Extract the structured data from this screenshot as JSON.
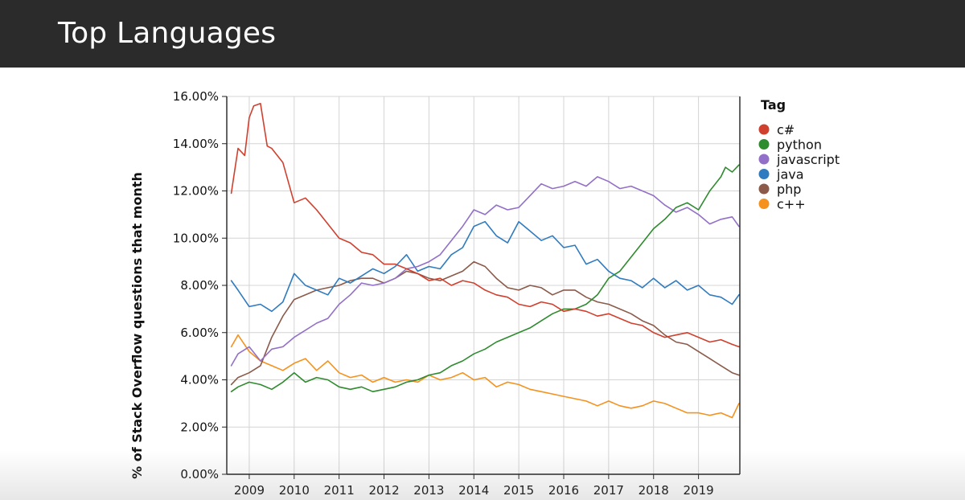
{
  "slide": {
    "title": "Top Languages"
  },
  "chart_data": {
    "type": "line",
    "title": "",
    "xlabel": "",
    "ylabel": "% of Stack Overflow questions that month",
    "x_ticks": [
      "2009",
      "2010",
      "2011",
      "2012",
      "2013",
      "2014",
      "2015",
      "2016",
      "2017",
      "2018",
      "2019"
    ],
    "y_ticks": [
      "0.00%",
      "2.00%",
      "4.00%",
      "6.00%",
      "8.00%",
      "10.00%",
      "12.00%",
      "14.00%",
      "16.00%"
    ],
    "xlim": [
      2008.5,
      2019.92
    ],
    "ylim": [
      0,
      16
    ],
    "grid": true,
    "legend": {
      "title": "Tag",
      "position": "right"
    },
    "series": [
      {
        "name": "c#",
        "color": "#d0402e",
        "x": [
          2008.6,
          2008.75,
          2008.9,
          2009.0,
          2009.1,
          2009.25,
          2009.4,
          2009.5,
          2009.75,
          2010.0,
          2010.25,
          2010.5,
          2010.75,
          2011.0,
          2011.25,
          2011.5,
          2011.75,
          2012.0,
          2012.25,
          2012.5,
          2012.75,
          2013.0,
          2013.25,
          2013.5,
          2013.75,
          2014.0,
          2014.25,
          2014.5,
          2014.75,
          2015.0,
          2015.25,
          2015.5,
          2015.75,
          2016.0,
          2016.25,
          2016.5,
          2016.75,
          2017.0,
          2017.25,
          2017.5,
          2017.75,
          2018.0,
          2018.25,
          2018.5,
          2018.75,
          2019.0,
          2019.25,
          2019.5,
          2019.75,
          2019.9
        ],
        "values": [
          11.9,
          13.8,
          13.5,
          15.1,
          15.6,
          15.7,
          13.9,
          13.8,
          13.2,
          11.5,
          11.7,
          11.2,
          10.6,
          10.0,
          9.8,
          9.4,
          9.3,
          8.9,
          8.9,
          8.7,
          8.5,
          8.2,
          8.3,
          8.0,
          8.2,
          8.1,
          7.8,
          7.6,
          7.5,
          7.2,
          7.1,
          7.3,
          7.2,
          6.9,
          7.0,
          6.9,
          6.7,
          6.8,
          6.6,
          6.4,
          6.3,
          6.0,
          5.8,
          5.9,
          6.0,
          5.8,
          5.6,
          5.7,
          5.5,
          5.4
        ]
      },
      {
        "name": "python",
        "color": "#2e8b2e",
        "x": [
          2008.6,
          2008.75,
          2009.0,
          2009.25,
          2009.5,
          2009.75,
          2010.0,
          2010.25,
          2010.5,
          2010.75,
          2011.0,
          2011.25,
          2011.5,
          2011.75,
          2012.0,
          2012.25,
          2012.5,
          2012.75,
          2013.0,
          2013.25,
          2013.5,
          2013.75,
          2014.0,
          2014.25,
          2014.5,
          2014.75,
          2015.0,
          2015.25,
          2015.5,
          2015.75,
          2016.0,
          2016.25,
          2016.5,
          2016.75,
          2017.0,
          2017.25,
          2017.5,
          2017.75,
          2018.0,
          2018.25,
          2018.5,
          2018.75,
          2019.0,
          2019.25,
          2019.5,
          2019.6,
          2019.75,
          2019.9
        ],
        "values": [
          3.5,
          3.7,
          3.9,
          3.8,
          3.6,
          3.9,
          4.3,
          3.9,
          4.1,
          4.0,
          3.7,
          3.6,
          3.7,
          3.5,
          3.6,
          3.7,
          3.9,
          4.0,
          4.2,
          4.3,
          4.6,
          4.8,
          5.1,
          5.3,
          5.6,
          5.8,
          6.0,
          6.2,
          6.5,
          6.8,
          7.0,
          7.0,
          7.2,
          7.6,
          8.3,
          8.6,
          9.2,
          9.8,
          10.4,
          10.8,
          11.3,
          11.5,
          11.2,
          12.0,
          12.6,
          13.0,
          12.8,
          13.1
        ]
      },
      {
        "name": "javascript",
        "color": "#9370c8",
        "x": [
          2008.6,
          2008.75,
          2009.0,
          2009.25,
          2009.5,
          2009.75,
          2010.0,
          2010.25,
          2010.5,
          2010.75,
          2011.0,
          2011.25,
          2011.5,
          2011.75,
          2012.0,
          2012.25,
          2012.5,
          2012.75,
          2013.0,
          2013.25,
          2013.5,
          2013.75,
          2014.0,
          2014.25,
          2014.5,
          2014.75,
          2015.0,
          2015.25,
          2015.5,
          2015.75,
          2016.0,
          2016.25,
          2016.5,
          2016.75,
          2017.0,
          2017.25,
          2017.5,
          2017.75,
          2018.0,
          2018.25,
          2018.5,
          2018.75,
          2019.0,
          2019.25,
          2019.5,
          2019.75,
          2019.9
        ],
        "values": [
          4.6,
          5.1,
          5.4,
          4.8,
          5.3,
          5.4,
          5.8,
          6.1,
          6.4,
          6.6,
          7.2,
          7.6,
          8.1,
          8.0,
          8.1,
          8.3,
          8.7,
          8.8,
          9.0,
          9.3,
          9.9,
          10.5,
          11.2,
          11.0,
          11.4,
          11.2,
          11.3,
          11.8,
          12.3,
          12.1,
          12.2,
          12.4,
          12.2,
          12.6,
          12.4,
          12.1,
          12.2,
          12.0,
          11.8,
          11.4,
          11.1,
          11.3,
          11.0,
          10.6,
          10.8,
          10.9,
          10.5
        ]
      },
      {
        "name": "java",
        "color": "#2f7bbf",
        "x": [
          2008.6,
          2008.75,
          2009.0,
          2009.25,
          2009.5,
          2009.75,
          2010.0,
          2010.25,
          2010.5,
          2010.75,
          2011.0,
          2011.25,
          2011.5,
          2011.75,
          2012.0,
          2012.25,
          2012.5,
          2012.75,
          2013.0,
          2013.25,
          2013.5,
          2013.75,
          2014.0,
          2014.25,
          2014.5,
          2014.75,
          2015.0,
          2015.25,
          2015.5,
          2015.75,
          2016.0,
          2016.25,
          2016.5,
          2016.75,
          2017.0,
          2017.25,
          2017.5,
          2017.75,
          2018.0,
          2018.25,
          2018.5,
          2018.75,
          2019.0,
          2019.25,
          2019.5,
          2019.75,
          2019.9
        ],
        "values": [
          8.2,
          7.8,
          7.1,
          7.2,
          6.9,
          7.3,
          8.5,
          8.0,
          7.8,
          7.6,
          8.3,
          8.1,
          8.4,
          8.7,
          8.5,
          8.8,
          9.3,
          8.6,
          8.8,
          8.7,
          9.3,
          9.6,
          10.5,
          10.7,
          10.1,
          9.8,
          10.7,
          10.3,
          9.9,
          10.1,
          9.6,
          9.7,
          8.9,
          9.1,
          8.6,
          8.3,
          8.2,
          7.9,
          8.3,
          7.9,
          8.2,
          7.8,
          8.0,
          7.6,
          7.5,
          7.2,
          7.6
        ]
      },
      {
        "name": "php",
        "color": "#8b5a4a",
        "x": [
          2008.6,
          2008.75,
          2009.0,
          2009.25,
          2009.5,
          2009.75,
          2010.0,
          2010.25,
          2010.5,
          2010.75,
          2011.0,
          2011.25,
          2011.5,
          2011.75,
          2012.0,
          2012.25,
          2012.5,
          2012.75,
          2013.0,
          2013.25,
          2013.5,
          2013.75,
          2014.0,
          2014.25,
          2014.5,
          2014.75,
          2015.0,
          2015.25,
          2015.5,
          2015.75,
          2016.0,
          2016.25,
          2016.5,
          2016.75,
          2017.0,
          2017.25,
          2017.5,
          2017.75,
          2018.0,
          2018.25,
          2018.5,
          2018.75,
          2019.0,
          2019.25,
          2019.5,
          2019.75,
          2019.9
        ],
        "values": [
          3.8,
          4.1,
          4.3,
          4.6,
          5.8,
          6.7,
          7.4,
          7.6,
          7.8,
          7.9,
          8.0,
          8.2,
          8.3,
          8.3,
          8.1,
          8.3,
          8.6,
          8.5,
          8.3,
          8.2,
          8.4,
          8.6,
          9.0,
          8.8,
          8.3,
          7.9,
          7.8,
          8.0,
          7.9,
          7.6,
          7.8,
          7.8,
          7.5,
          7.3,
          7.2,
          7.0,
          6.8,
          6.5,
          6.3,
          5.9,
          5.6,
          5.5,
          5.2,
          4.9,
          4.6,
          4.3,
          4.2
        ]
      },
      {
        "name": "c++",
        "color": "#f5921e",
        "x": [
          2008.6,
          2008.75,
          2009.0,
          2009.25,
          2009.5,
          2009.75,
          2010.0,
          2010.25,
          2010.5,
          2010.75,
          2011.0,
          2011.25,
          2011.5,
          2011.75,
          2012.0,
          2012.25,
          2012.5,
          2012.75,
          2013.0,
          2013.25,
          2013.5,
          2013.75,
          2014.0,
          2014.25,
          2014.5,
          2014.75,
          2015.0,
          2015.25,
          2015.5,
          2015.75,
          2016.0,
          2016.25,
          2016.5,
          2016.75,
          2017.0,
          2017.25,
          2017.5,
          2017.75,
          2018.0,
          2018.25,
          2018.5,
          2018.75,
          2019.0,
          2019.25,
          2019.5,
          2019.75,
          2019.9
        ],
        "values": [
          5.4,
          5.9,
          5.2,
          4.8,
          4.6,
          4.4,
          4.7,
          4.9,
          4.4,
          4.8,
          4.3,
          4.1,
          4.2,
          3.9,
          4.1,
          3.9,
          4.0,
          3.9,
          4.2,
          4.0,
          4.1,
          4.3,
          4.0,
          4.1,
          3.7,
          3.9,
          3.8,
          3.6,
          3.5,
          3.4,
          3.3,
          3.2,
          3.1,
          2.9,
          3.1,
          2.9,
          2.8,
          2.9,
          3.1,
          3.0,
          2.8,
          2.6,
          2.6,
          2.5,
          2.6,
          2.4,
          3.0
        ]
      }
    ]
  }
}
